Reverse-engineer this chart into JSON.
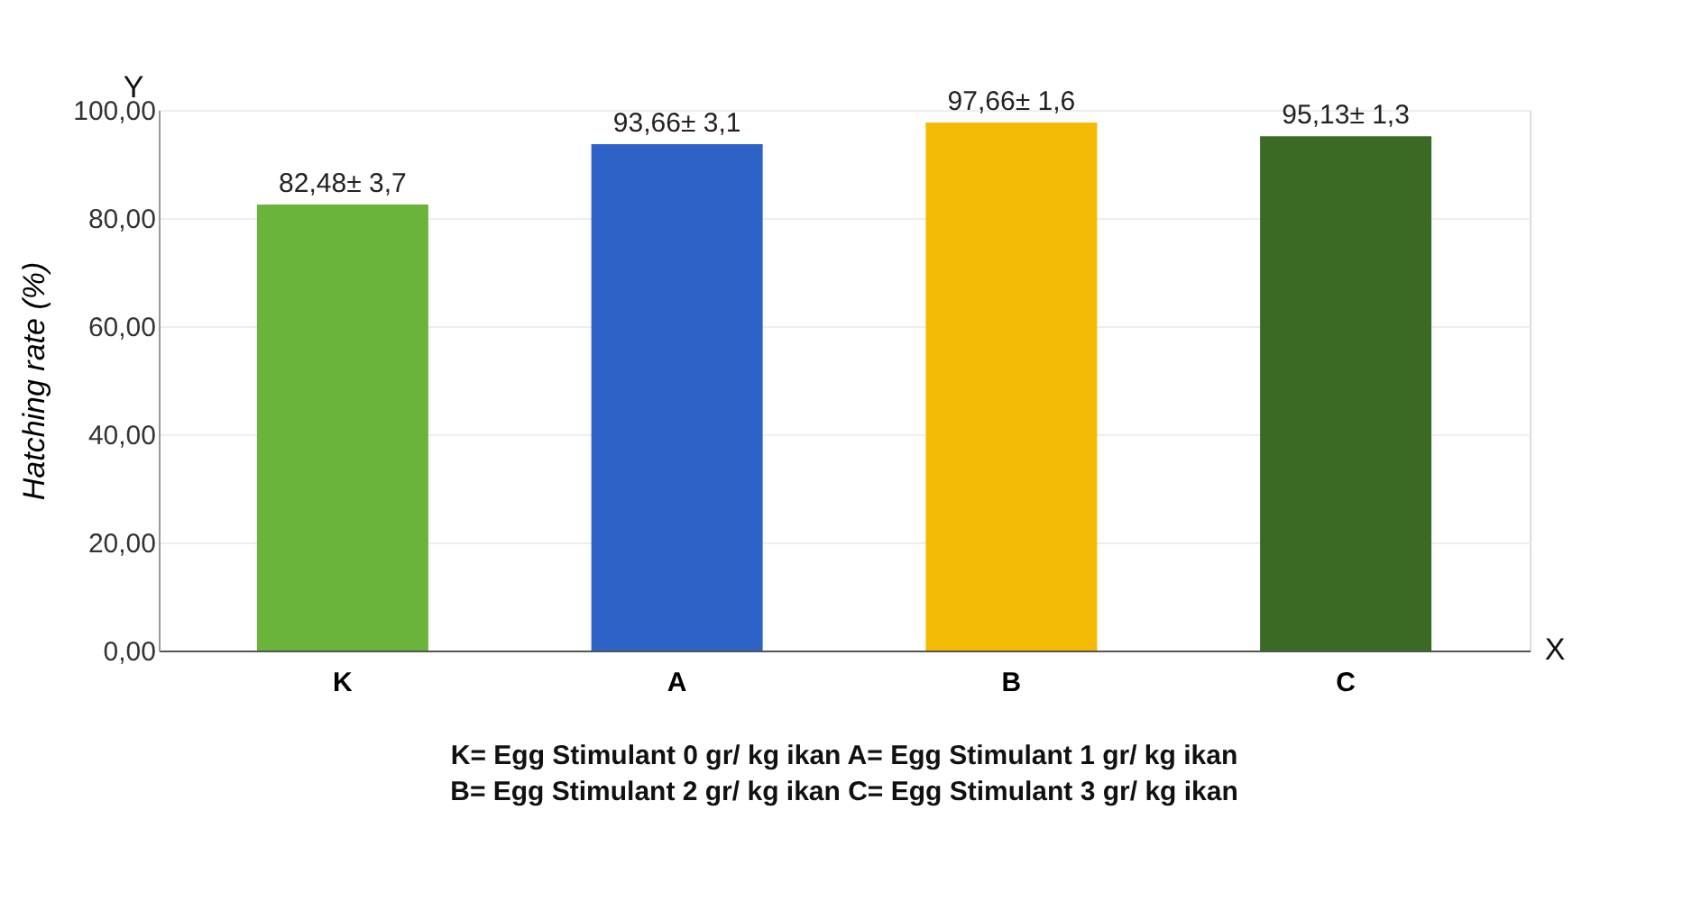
{
  "chart_data": {
    "type": "bar",
    "ylabel": "Hatching rate (%)",
    "categories": [
      "K",
      "A",
      "B",
      "C"
    ],
    "values": [
      82.48,
      93.66,
      97.66,
      95.13
    ],
    "colors": [
      "#6ab43c",
      "#2d62c6",
      "#f4bb05",
      "#3b6a24"
    ],
    "value_labels": [
      "82,48± 3,7",
      "93,66± 3,1",
      "97,66± 1,6",
      "95,13± 1,3"
    ],
    "ylim": [
      0,
      100
    ],
    "yticks": [
      {
        "value": 0,
        "label": "0,00"
      },
      {
        "value": 20,
        "label": "20,00"
      },
      {
        "value": 40,
        "label": "40,00"
      },
      {
        "value": 60,
        "label": "60,00"
      },
      {
        "value": 80,
        "label": "80,00"
      },
      {
        "value": 100,
        "label": "100,00"
      }
    ],
    "grid": "y",
    "annotations": [
      "Y",
      "X",
      "K= Egg Stimulant 0 gr/ kg ikan A= Egg Stimulant 1 gr/ kg ikan",
      "B= Egg Stimulant 2 gr/ kg ikan C= Egg Stimulant 3 gr/ kg ikan"
    ]
  }
}
